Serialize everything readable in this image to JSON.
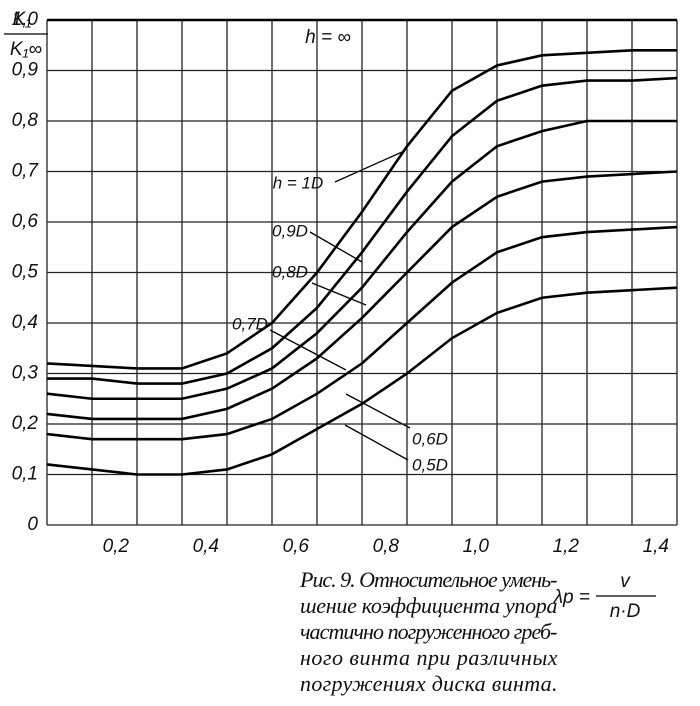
{
  "chart_data": {
    "type": "line",
    "ylabel_num": "K₁",
    "ylabel_den": "K₁∞",
    "xlabel_lhs": "λp =",
    "xlabel_num": "v",
    "xlabel_den": "n·D",
    "caption": [
      "Рис. 9. Относительное умень-",
      "шение коэффициента упора",
      "частично погруженного греб-",
      "ного винта при различных",
      "погружениях диска винта."
    ],
    "x": [
      0,
      0.1,
      0.2,
      0.3,
      0.4,
      0.5,
      0.6,
      0.7,
      0.8,
      0.9,
      1.0,
      1.1,
      1.2,
      1.3,
      1.4
    ],
    "series": [
      {
        "name": "h = ∞",
        "color": "#000000",
        "values": [
          1.0,
          1.0,
          1.0,
          1.0,
          1.0,
          1.0,
          1.0,
          1.0,
          1.0,
          1.0,
          1.0,
          1.0,
          1.0,
          1.0,
          1.0
        ]
      },
      {
        "name": "h = 1D",
        "color": "#000000",
        "values": [
          0.32,
          0.315,
          0.31,
          0.31,
          0.34,
          0.4,
          0.5,
          0.62,
          0.75,
          0.86,
          0.91,
          0.93,
          0.935,
          0.94,
          0.94
        ]
      },
      {
        "name": "0,9D",
        "color": "#000000",
        "values": [
          0.29,
          0.29,
          0.28,
          0.28,
          0.3,
          0.35,
          0.43,
          0.54,
          0.66,
          0.77,
          0.84,
          0.87,
          0.88,
          0.88,
          0.885
        ]
      },
      {
        "name": "0,8D",
        "color": "#000000",
        "values": [
          0.26,
          0.25,
          0.25,
          0.25,
          0.27,
          0.31,
          0.38,
          0.47,
          0.58,
          0.68,
          0.75,
          0.78,
          0.8,
          0.8,
          0.8
        ]
      },
      {
        "name": "0,7D",
        "color": "#000000",
        "values": [
          0.22,
          0.21,
          0.21,
          0.21,
          0.23,
          0.27,
          0.33,
          0.41,
          0.5,
          0.59,
          0.65,
          0.68,
          0.69,
          0.695,
          0.7
        ]
      },
      {
        "name": "0,6D",
        "color": "#000000",
        "values": [
          0.18,
          0.17,
          0.17,
          0.17,
          0.18,
          0.21,
          0.26,
          0.32,
          0.4,
          0.48,
          0.54,
          0.57,
          0.58,
          0.585,
          0.59
        ]
      },
      {
        "name": "0,5D",
        "color": "#000000",
        "values": [
          0.12,
          0.11,
          0.1,
          0.1,
          0.11,
          0.14,
          0.19,
          0.24,
          0.3,
          0.37,
          0.42,
          0.45,
          0.46,
          0.465,
          0.47
        ]
      }
    ],
    "xlim": [
      0,
      1.4
    ],
    "ylim": [
      0,
      1.0
    ],
    "xticks": [
      {
        "value": 0.2,
        "label": "0,2"
      },
      {
        "value": 0.4,
        "label": "0,4"
      },
      {
        "value": 0.6,
        "label": "0,6"
      },
      {
        "value": 0.8,
        "label": "0,8"
      },
      {
        "value": 1.0,
        "label": "1,0"
      },
      {
        "value": 1.2,
        "label": "1,2"
      },
      {
        "value": 1.4,
        "label": "1,4"
      }
    ],
    "xgrid": [
      0,
      0.1,
      0.2,
      0.3,
      0.4,
      0.5,
      0.6,
      0.7,
      0.8,
      0.9,
      1.0,
      1.1,
      1.2,
      1.3,
      1.4
    ],
    "yticks": [
      0,
      {
        "value": 0.1,
        "label": "0,1"
      },
      {
        "value": 0.2,
        "label": "0,2"
      },
      {
        "value": 0.3,
        "label": "0,3"
      },
      {
        "value": 0.4,
        "label": "0,4"
      },
      {
        "value": 0.5,
        "label": "0,5"
      },
      {
        "value": 0.6,
        "label": "0,6"
      },
      {
        "value": 0.7,
        "label": "0,7"
      },
      {
        "value": 0.8,
        "label": "0,8"
      },
      {
        "value": 0.9,
        "label": "0,9"
      },
      {
        "value": 1.0,
        "label": "1,0"
      }
    ],
    "grid": true
  }
}
